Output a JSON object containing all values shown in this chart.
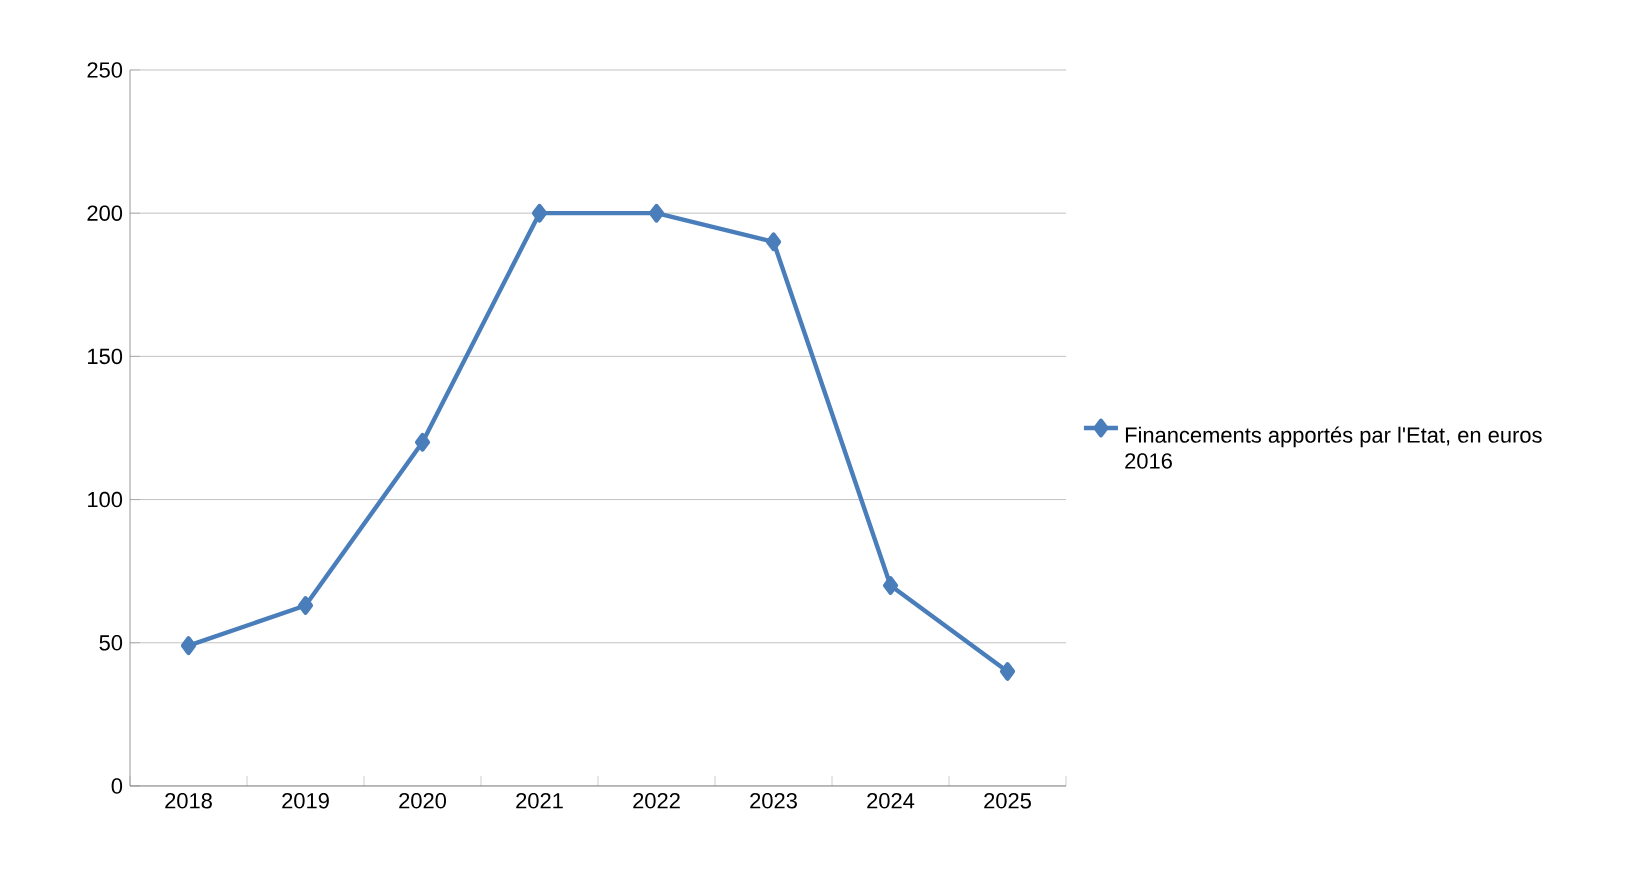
{
  "chart_data": {
    "type": "line",
    "categories": [
      "2018",
      "2019",
      "2020",
      "2021",
      "2022",
      "2023",
      "2024",
      "2025"
    ],
    "series": [
      {
        "name": "Financements apportés par l'Etat, en euros 2016",
        "color": "#4a7ebb",
        "values": [
          49,
          63,
          120,
          200,
          200,
          190,
          70,
          40
        ]
      }
    ],
    "ylim": [
      0,
      250
    ],
    "yticks": [
      0,
      50,
      100,
      150,
      200,
      250
    ],
    "grid": "y",
    "legend": "right",
    "marker": "diamond",
    "line_style": "solid"
  }
}
